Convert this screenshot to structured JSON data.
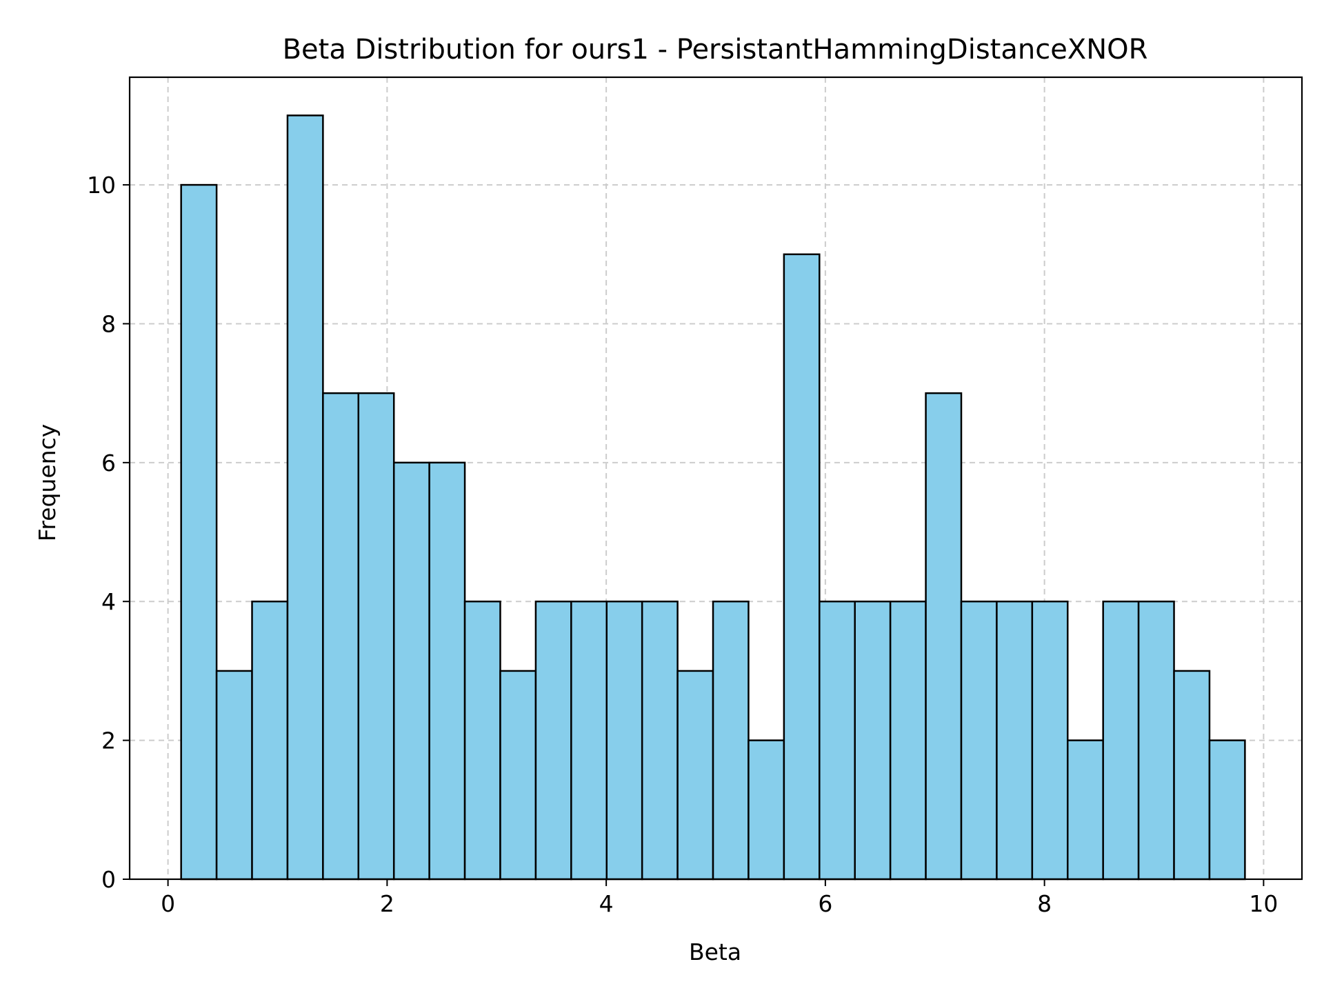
{
  "chart_data": {
    "type": "bar",
    "subtype": "histogram",
    "title": "Beta Distribution for ours1 - PersistantHammingDistanceXNOR",
    "xlabel": "Beta",
    "ylabel": "Frequency",
    "xlim": [
      -0.35,
      10.35
    ],
    "ylim": [
      0,
      11.55
    ],
    "x_ticks": [
      "0",
      "2",
      "4",
      "6",
      "8",
      "10"
    ],
    "y_ticks": [
      "0",
      "2",
      "4",
      "6",
      "8",
      "10"
    ],
    "grid": true,
    "bin_start": 0.12,
    "bin_end": 9.83,
    "values": [
      10,
      3,
      4,
      11,
      7,
      7,
      6,
      6,
      4,
      3,
      4,
      4,
      4,
      4,
      3,
      4,
      2,
      9,
      4,
      4,
      4,
      7,
      4,
      4,
      4,
      2,
      4,
      4,
      3,
      2
    ],
    "bar_color": "#87ceeb",
    "edge_color": "#000000",
    "grid_color": "#cccccc"
  }
}
